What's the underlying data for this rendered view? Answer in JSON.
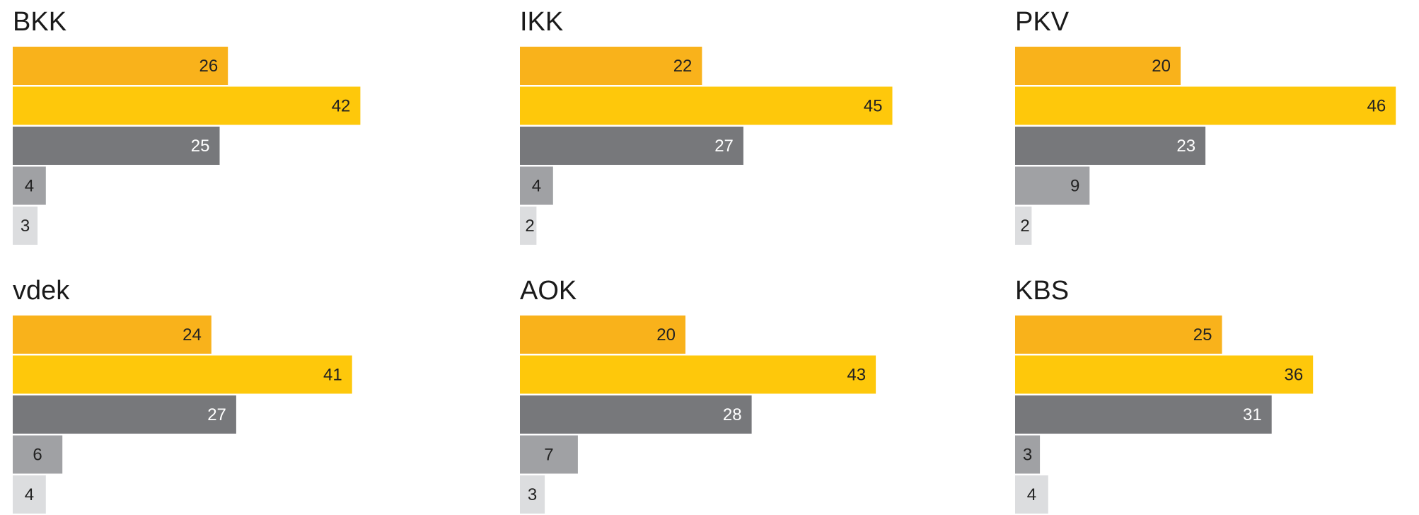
{
  "colors": {
    "series": [
      "#f9b21b",
      "#fec80b",
      "#77787b",
      "#a0a1a4",
      "#dcdddf"
    ],
    "label_dark": "#222222",
    "label_light": "#ffffff"
  },
  "chart_data": [
    {
      "type": "bar",
      "orientation": "horizontal",
      "title": "BKK",
      "values": [
        26,
        42,
        25,
        4,
        3
      ]
    },
    {
      "type": "bar",
      "orientation": "horizontal",
      "title": "IKK",
      "values": [
        22,
        45,
        27,
        4,
        2
      ]
    },
    {
      "type": "bar",
      "orientation": "horizontal",
      "title": "PKV",
      "values": [
        20,
        46,
        23,
        9,
        2
      ]
    },
    {
      "type": "bar",
      "orientation": "horizontal",
      "title": "vdek",
      "values": [
        24,
        41,
        27,
        6,
        4
      ]
    },
    {
      "type": "bar",
      "orientation": "horizontal",
      "title": "AOK",
      "values": [
        20,
        43,
        28,
        7,
        3
      ]
    },
    {
      "type": "bar",
      "orientation": "horizontal",
      "title": "KBS",
      "values": [
        25,
        36,
        31,
        3,
        4
      ]
    }
  ]
}
